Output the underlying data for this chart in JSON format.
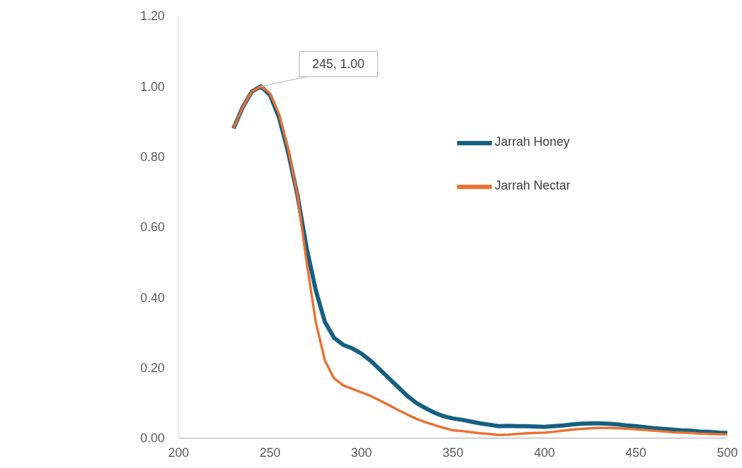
{
  "chart_data": {
    "type": "line",
    "x": [
      230,
      235,
      240,
      245,
      250,
      255,
      260,
      265,
      270,
      275,
      280,
      285,
      290,
      295,
      300,
      305,
      310,
      315,
      320,
      325,
      330,
      335,
      340,
      345,
      350,
      355,
      360,
      365,
      370,
      375,
      380,
      385,
      390,
      395,
      400,
      405,
      410,
      415,
      420,
      425,
      430,
      435,
      440,
      445,
      450,
      455,
      460,
      465,
      470,
      475,
      480,
      485,
      490,
      495,
      500
    ],
    "series": [
      {
        "name": "Jarrah Honey",
        "color": "#156082",
        "values": [
          0.88,
          0.94,
          0.985,
          1.0,
          0.975,
          0.91,
          0.81,
          0.69,
          0.54,
          0.42,
          0.33,
          0.285,
          0.265,
          0.255,
          0.24,
          0.22,
          0.195,
          0.17,
          0.145,
          0.12,
          0.1,
          0.085,
          0.072,
          0.062,
          0.056,
          0.052,
          0.047,
          0.042,
          0.038,
          0.034,
          0.035,
          0.034,
          0.034,
          0.033,
          0.032,
          0.034,
          0.036,
          0.039,
          0.041,
          0.042,
          0.042,
          0.041,
          0.039,
          0.036,
          0.034,
          0.031,
          0.028,
          0.026,
          0.024,
          0.022,
          0.021,
          0.019,
          0.018,
          0.016,
          0.015
        ]
      },
      {
        "name": "Jarrah Nectar",
        "color": "#e97132",
        "values": [
          0.88,
          0.94,
          0.985,
          1.0,
          0.98,
          0.92,
          0.82,
          0.69,
          0.5,
          0.33,
          0.22,
          0.17,
          0.15,
          0.14,
          0.13,
          0.12,
          0.107,
          0.094,
          0.08,
          0.067,
          0.055,
          0.045,
          0.037,
          0.029,
          0.022,
          0.02,
          0.017,
          0.014,
          0.012,
          0.009,
          0.01,
          0.012,
          0.014,
          0.015,
          0.016,
          0.018,
          0.021,
          0.024,
          0.026,
          0.028,
          0.029,
          0.029,
          0.028,
          0.027,
          0.025,
          0.023,
          0.021,
          0.019,
          0.017,
          0.016,
          0.015,
          0.013,
          0.012,
          0.011,
          0.011
        ]
      }
    ],
    "xlim": [
      200,
      500
    ],
    "xticks": [
      200,
      250,
      300,
      350,
      400,
      450,
      500
    ],
    "ylim": [
      0,
      1.2
    ],
    "yticks": [
      {
        "value": 0,
        "label": "0.00"
      },
      {
        "value": 0.2,
        "label": "0.20"
      },
      {
        "value": 0.4,
        "label": "0.40"
      },
      {
        "value": 0.6,
        "label": "0.60"
      },
      {
        "value": 0.8,
        "label": "0.80"
      },
      {
        "value": 1,
        "label": "1.00"
      },
      {
        "value": 1.2,
        "label": "1.20"
      }
    ],
    "annotations": [
      {
        "text": "245, 1.00",
        "x": 245,
        "y": 1.0
      }
    ],
    "grid": false,
    "legend": "right",
    "marker": "none",
    "line_style": "solid"
  }
}
